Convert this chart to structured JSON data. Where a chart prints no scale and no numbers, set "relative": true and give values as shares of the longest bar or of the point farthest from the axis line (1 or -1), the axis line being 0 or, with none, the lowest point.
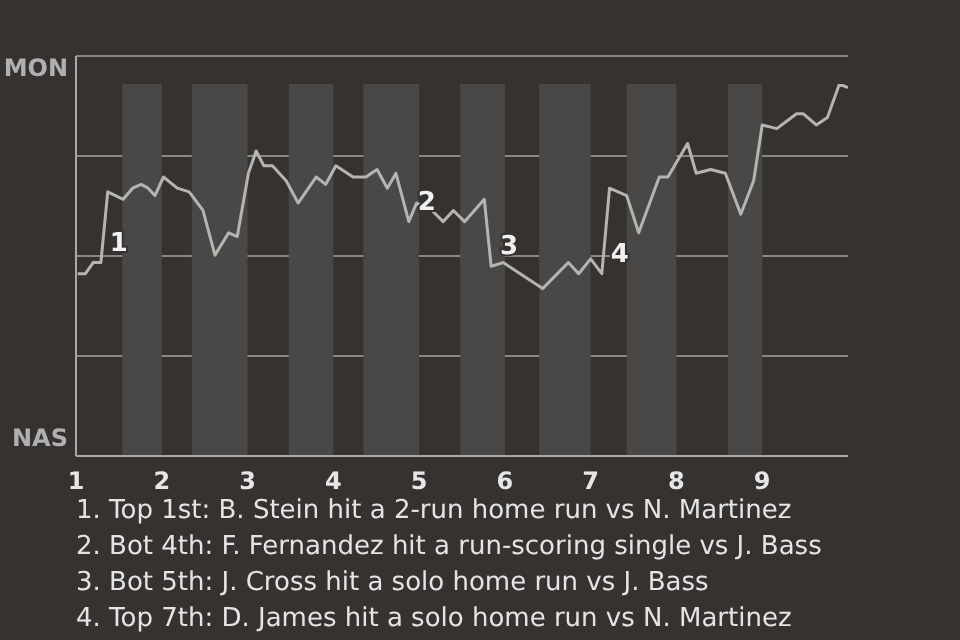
{
  "chart_data": {
    "type": "line",
    "relative": true,
    "x": [
      1.02,
      1.11,
      1.2,
      1.29,
      1.37,
      1.55,
      1.66,
      1.76,
      1.84,
      1.92,
      2.02,
      2.18,
      2.32,
      2.48,
      2.62,
      2.78,
      2.88,
      3.01,
      3.1,
      3.19,
      3.29,
      3.45,
      3.59,
      3.71,
      3.8,
      3.91,
      4.03,
      4.23,
      4.38,
      4.51,
      4.63,
      4.73,
      4.88,
      4.97,
      5.15,
      5.28,
      5.4,
      5.53,
      5.76,
      5.84,
      5.98,
      6.44,
      6.74,
      6.86,
      7.0,
      7.13,
      7.22,
      7.42,
      7.56,
      7.8,
      7.9,
      8.13,
      8.23,
      8.4,
      8.57,
      8.75,
      8.9,
      9.0,
      9.17,
      9.4,
      9.48,
      9.63,
      9.76,
      9.9,
      10.0
    ],
    "series": [
      {
        "color": "#b4b4b2",
        "values": [
          0.49,
          0.49,
          0.52,
          0.52,
          0.71,
          0.69,
          0.72,
          0.73,
          0.72,
          0.7,
          0.75,
          0.72,
          0.71,
          0.66,
          0.54,
          0.6,
          0.59,
          0.76,
          0.82,
          0.78,
          0.78,
          0.74,
          0.68,
          0.72,
          0.75,
          0.73,
          0.78,
          0.75,
          0.75,
          0.77,
          0.72,
          0.76,
          0.63,
          0.68,
          0.66,
          0.63,
          0.66,
          0.63,
          0.69,
          0.51,
          0.52,
          0.45,
          0.52,
          0.49,
          0.53,
          0.49,
          0.72,
          0.7,
          0.6,
          0.75,
          0.75,
          0.84,
          0.76,
          0.77,
          0.76,
          0.65,
          0.74,
          0.89,
          0.88,
          0.92,
          0.92,
          0.89,
          0.91,
          1,
          0.99
        ]
      }
    ],
    "xlim": [
      1,
      10
    ],
    "xticks": [
      1,
      2,
      3,
      4,
      5,
      6,
      7,
      8,
      9
    ],
    "grid": "y",
    "legend": false,
    "marker": "none",
    "line_style": "solid",
    "bands": [
      {
        "axis": "x",
        "from": 1.54,
        "to": 2,
        "color": "#4a4846"
      },
      {
        "axis": "x",
        "from": 2.35,
        "to": 3,
        "color": "#4a4846"
      },
      {
        "axis": "x",
        "from": 3.48,
        "to": 4,
        "color": "#4a4846"
      },
      {
        "axis": "x",
        "from": 4.35,
        "to": 5,
        "color": "#4a4846"
      },
      {
        "axis": "x",
        "from": 5.48,
        "to": 6,
        "color": "#4a4846"
      },
      {
        "axis": "x",
        "from": 6.4,
        "to": 7,
        "color": "#4a4846"
      },
      {
        "axis": "x",
        "from": 7.42,
        "to": 8,
        "color": "#4a4846"
      },
      {
        "axis": "x",
        "from": 8.6,
        "to": 9,
        "color": "#4a4846"
      }
    ],
    "annotations": [
      "MON",
      "NAS",
      {
        "text": "1",
        "x": 1.29,
        "y": 0.52
      },
      {
        "text": "2",
        "x": 4.88,
        "y": 0.63
      },
      {
        "text": "3",
        "x": 5.84,
        "y": 0.51
      },
      {
        "text": "4",
        "x": 7.13,
        "y": 0.49
      },
      "1. Top 1st: B. Stein hit a 2-run home run vs N. Martinez",
      "2. Bot 4th: F. Fernandez hit a run-scoring single vs J. Bass",
      "3. Bot 5th: J. Cross hit a solo home run vs J. Bass",
      "4. Top 7th: D. James hit a solo home run vs N. Martinez"
    ]
  }
}
